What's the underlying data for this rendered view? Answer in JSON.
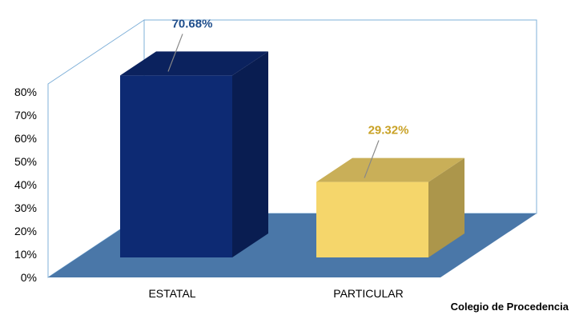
{
  "chart_data": {
    "type": "bar",
    "style": "3d",
    "categories": [
      "ESTATAL",
      "PARTICULAR"
    ],
    "values": [
      70.68,
      29.32
    ],
    "value_labels": [
      "70.68%",
      "29.32%"
    ],
    "ylim": [
      0,
      80
    ],
    "yticks": [
      "0%",
      "10%",
      "20%",
      "30%",
      "40%",
      "50%",
      "60%",
      "70%",
      "80%"
    ],
    "xlabel": "Colegio de Procedencia",
    "ylabel": "",
    "title": "",
    "grid": false,
    "legend": "none",
    "colors": {
      "bars": [
        "#0d2a73",
        "#f5d66b"
      ],
      "labels": [
        "#1f4e8c",
        "#c9a227"
      ],
      "floor": "#4a77a8",
      "walls": "#7fb0d8"
    }
  }
}
